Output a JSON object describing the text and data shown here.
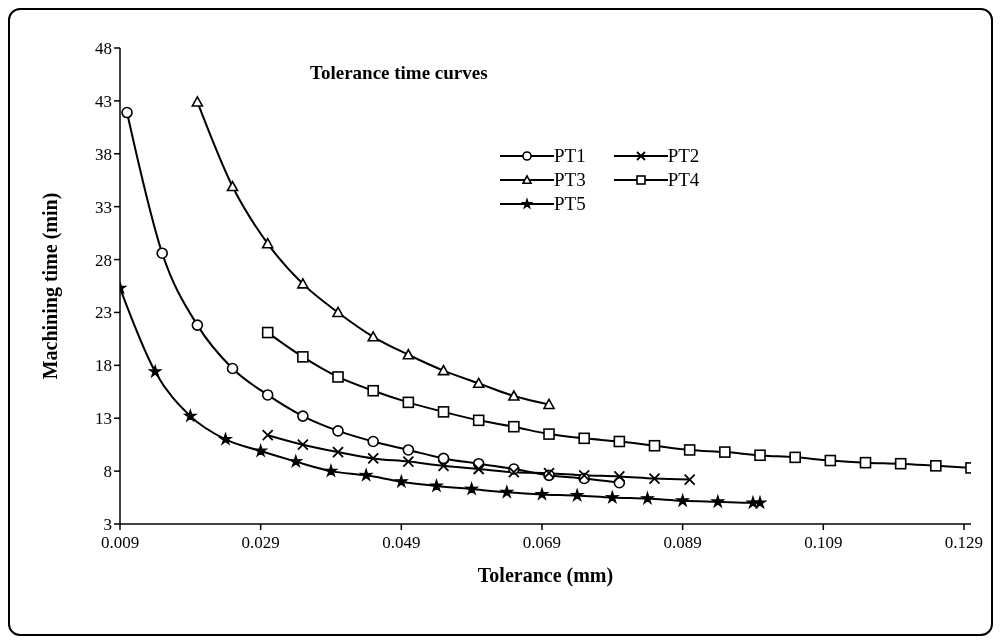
{
  "chart_data": {
    "type": "line",
    "title": "Tolerance time curves",
    "xlabel": "Tolerance (mm)",
    "ylabel": "Machining time (min)",
    "xlim": [
      0.009,
      0.13
    ],
    "xticks": [
      0.009,
      0.029,
      0.049,
      0.069,
      0.089,
      0.109,
      0.129
    ],
    "ylim": [
      3,
      48
    ],
    "yticks": [
      3,
      8,
      13,
      18,
      23,
      28,
      33,
      38,
      43,
      48
    ],
    "grid": false,
    "legend": "top right",
    "line_style": "solid",
    "series": [
      {
        "name": "PT1",
        "color": "#000000",
        "marker": "circle",
        "x": [
          0.01,
          0.015,
          0.02,
          0.025,
          0.03,
          0.035,
          0.04,
          0.045,
          0.05,
          0.055,
          0.06,
          0.065,
          0.07,
          0.075,
          0.08
        ],
        "values": [
          41.9,
          28.6,
          21.8,
          17.7,
          15.2,
          13.2,
          11.8,
          10.8,
          10.0,
          9.2,
          8.7,
          8.2,
          7.6,
          7.3,
          6.9
        ]
      },
      {
        "name": "PT2",
        "color": "#000000",
        "marker": "cross",
        "x": [
          0.03,
          0.035,
          0.04,
          0.045,
          0.05,
          0.055,
          0.06,
          0.065,
          0.07,
          0.075,
          0.08,
          0.085,
          0.09
        ],
        "values": [
          11.4,
          10.5,
          9.8,
          9.2,
          8.9,
          8.5,
          8.2,
          7.9,
          7.8,
          7.6,
          7.5,
          7.3,
          7.2
        ]
      },
      {
        "name": "PT3",
        "color": "#000000",
        "marker": "triangle",
        "x": [
          0.02,
          0.025,
          0.03,
          0.035,
          0.04,
          0.045,
          0.05,
          0.055,
          0.06,
          0.065,
          0.07
        ],
        "values": [
          42.9,
          34.9,
          29.5,
          25.7,
          23.0,
          20.7,
          19.0,
          17.5,
          16.3,
          15.1,
          14.3
        ]
      },
      {
        "name": "PT4",
        "color": "#000000",
        "marker": "square",
        "x": [
          0.03,
          0.035,
          0.04,
          0.045,
          0.05,
          0.055,
          0.06,
          0.065,
          0.07,
          0.075,
          0.08,
          0.085,
          0.09,
          0.095,
          0.1,
          0.105,
          0.11,
          0.115,
          0.12,
          0.125,
          0.13
        ],
        "values": [
          21.1,
          18.8,
          16.9,
          15.6,
          14.5,
          13.6,
          12.8,
          12.2,
          11.5,
          11.1,
          10.8,
          10.4,
          10.0,
          9.8,
          9.5,
          9.3,
          9.0,
          8.8,
          8.7,
          8.5,
          8.3
        ]
      },
      {
        "name": "PT5",
        "color": "#000000",
        "marker": "star",
        "x": [
          0.009,
          0.014,
          0.019,
          0.024,
          0.029,
          0.034,
          0.039,
          0.044,
          0.049,
          0.054,
          0.059,
          0.064,
          0.069,
          0.074,
          0.079,
          0.084,
          0.089,
          0.094,
          0.099,
          0.1
        ],
        "values": [
          25.3,
          17.4,
          13.2,
          11.0,
          9.9,
          8.9,
          8.0,
          7.6,
          7.0,
          6.6,
          6.3,
          6.0,
          5.8,
          5.7,
          5.5,
          5.4,
          5.2,
          5.1,
          5.0,
          5.0
        ]
      }
    ]
  }
}
